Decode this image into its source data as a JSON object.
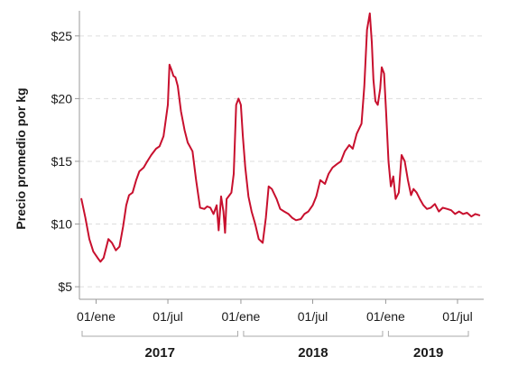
{
  "chart_data": {
    "type": "line",
    "title": "",
    "ylabel": "Precio promedio por kg",
    "xlabel": "",
    "ylim": [
      4,
      27
    ],
    "x_domain": [
      "2016-11-20",
      "2019-09-05"
    ],
    "y_ticks": [
      {
        "value": 5,
        "label": "$5"
      },
      {
        "value": 10,
        "label": "$10"
      },
      {
        "value": 15,
        "label": "$15"
      },
      {
        "value": 20,
        "label": "$20"
      },
      {
        "value": 25,
        "label": "$25"
      }
    ],
    "x_ticks": [
      {
        "date": "2017-01-01",
        "label": "01/ene"
      },
      {
        "date": "2017-07-01",
        "label": "01/jul"
      },
      {
        "date": "2018-01-01",
        "label": "01/ene"
      },
      {
        "date": "2018-07-01",
        "label": "01/jul"
      },
      {
        "date": "2019-01-01",
        "label": "01/ene"
      },
      {
        "date": "2019-07-01",
        "label": "01/jul"
      }
    ],
    "year_groups": [
      {
        "label": "2017",
        "start": "2016-11-20",
        "end": "2017-12-31"
      },
      {
        "label": "2018",
        "start": "2018-01-01",
        "end": "2018-12-31"
      },
      {
        "label": "2019",
        "start": "2019-01-01",
        "end": "2019-09-05"
      }
    ],
    "grid": true,
    "color": "#c8102e",
    "series": [
      {
        "name": "Precio promedio por kg",
        "dates": [
          "2016-11-25",
          "2016-12-05",
          "2016-12-15",
          "2016-12-25",
          "2017-01-05",
          "2017-01-12",
          "2017-01-20",
          "2017-02-01",
          "2017-02-10",
          "2017-02-20",
          "2017-03-01",
          "2017-03-10",
          "2017-03-18",
          "2017-03-25",
          "2017-04-03",
          "2017-04-12",
          "2017-04-20",
          "2017-05-01",
          "2017-05-10",
          "2017-05-20",
          "2017-06-01",
          "2017-06-10",
          "2017-06-20",
          "2017-07-01",
          "2017-07-05",
          "2017-07-10",
          "2017-07-15",
          "2017-07-20",
          "2017-07-26",
          "2017-08-03",
          "2017-08-12",
          "2017-08-20",
          "2017-09-01",
          "2017-09-10",
          "2017-09-20",
          "2017-10-01",
          "2017-10-08",
          "2017-10-16",
          "2017-10-24",
          "2017-11-01",
          "2017-11-06",
          "2017-11-12",
          "2017-11-18",
          "2017-11-22",
          "2017-11-26",
          "2017-12-01",
          "2017-12-08",
          "2017-12-14",
          "2017-12-20",
          "2017-12-26",
          "2018-01-01",
          "2018-01-06",
          "2018-01-12",
          "2018-01-20",
          "2018-01-28",
          "2018-02-06",
          "2018-02-15",
          "2018-02-25",
          "2018-03-05",
          "2018-03-12",
          "2018-03-20",
          "2018-04-01",
          "2018-04-10",
          "2018-04-20",
          "2018-05-01",
          "2018-05-10",
          "2018-05-20",
          "2018-06-01",
          "2018-06-10",
          "2018-06-20",
          "2018-07-01",
          "2018-07-10",
          "2018-07-20",
          "2018-08-01",
          "2018-08-10",
          "2018-08-20",
          "2018-09-01",
          "2018-09-10",
          "2018-09-20",
          "2018-10-01",
          "2018-10-10",
          "2018-10-20",
          "2018-11-01",
          "2018-11-08",
          "2018-11-15",
          "2018-11-22",
          "2018-11-27",
          "2018-12-01",
          "2018-12-06",
          "2018-12-12",
          "2018-12-18",
          "2018-12-22",
          "2018-12-28",
          "2019-01-02",
          "2019-01-08",
          "2019-01-14",
          "2019-01-20",
          "2019-01-26",
          "2019-02-03",
          "2019-02-10",
          "2019-02-18",
          "2019-02-26",
          "2019-03-06",
          "2019-03-12",
          "2019-03-20",
          "2019-03-28",
          "2019-04-06",
          "2019-04-15",
          "2019-04-25",
          "2019-05-05",
          "2019-05-15",
          "2019-05-25",
          "2019-06-05",
          "2019-06-15",
          "2019-06-25",
          "2019-07-05",
          "2019-07-15",
          "2019-07-25",
          "2019-08-05",
          "2019-08-15",
          "2019-08-25"
        ],
        "values": [
          12.0,
          10.5,
          8.8,
          7.8,
          7.3,
          7.0,
          7.3,
          8.8,
          8.5,
          7.9,
          8.2,
          9.8,
          11.5,
          12.3,
          12.5,
          13.5,
          14.2,
          14.5,
          15.0,
          15.5,
          16.0,
          16.2,
          17.0,
          19.5,
          22.7,
          22.3,
          21.8,
          21.7,
          21.0,
          19.0,
          17.5,
          16.5,
          15.8,
          13.5,
          11.3,
          11.2,
          11.4,
          11.3,
          10.8,
          11.5,
          9.5,
          12.2,
          11.0,
          9.3,
          12.0,
          12.2,
          12.5,
          14.0,
          19.5,
          20.0,
          19.5,
          17.0,
          14.5,
          12.2,
          11.0,
          10.0,
          8.8,
          8.5,
          10.5,
          13.0,
          12.8,
          12.0,
          11.2,
          11.0,
          10.8,
          10.5,
          10.3,
          10.4,
          10.8,
          11.0,
          11.5,
          12.2,
          13.5,
          13.2,
          14.0,
          14.5,
          14.8,
          15.0,
          15.8,
          16.3,
          16.0,
          17.2,
          18.0,
          21.0,
          25.5,
          26.8,
          24.5,
          21.5,
          19.8,
          19.5,
          20.8,
          22.5,
          22.0,
          19.0,
          15.0,
          13.0,
          13.8,
          12.0,
          12.5,
          15.5,
          15.0,
          13.5,
          12.3,
          12.8,
          12.5,
          12.0,
          11.5,
          11.2,
          11.3,
          11.6,
          11.0,
          11.3,
          11.2,
          11.1,
          10.8,
          11.0,
          10.8,
          10.9,
          10.6,
          10.8,
          10.7
        ]
      }
    ]
  }
}
